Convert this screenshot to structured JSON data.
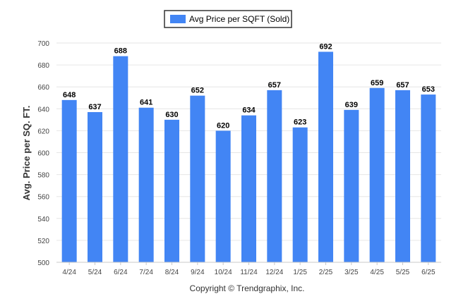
{
  "chart_data": {
    "type": "bar",
    "legend": {
      "label": "Avg Price per SQFT (Sold)",
      "position": "top-center"
    },
    "ylabel": "Avg. Price per SQ. FT.",
    "xlabel": "",
    "ylim": [
      500,
      700
    ],
    "yticks": [
      500,
      520,
      540,
      560,
      580,
      600,
      620,
      640,
      660,
      680,
      700
    ],
    "grid": true,
    "categories": [
      "4/24",
      "5/24",
      "6/24",
      "7/24",
      "8/24",
      "9/24",
      "10/24",
      "11/24",
      "12/24",
      "1/25",
      "2/25",
      "3/25",
      "4/25",
      "5/25",
      "6/25"
    ],
    "series": [
      {
        "name": "Avg Price per SQFT (Sold)",
        "color": "#4285f4",
        "values": [
          648,
          637,
          688,
          641,
          630,
          652,
          620,
          634,
          657,
          623,
          692,
          639,
          659,
          657,
          653
        ]
      }
    ],
    "data_labels": [
      "648",
      "637",
      "688",
      "641",
      "630",
      "652",
      "620",
      "634",
      "657",
      "623",
      "692",
      "639",
      "659",
      "657",
      "653"
    ]
  },
  "footer": {
    "copyright": "Copyright © Trendgraphix, Inc."
  }
}
